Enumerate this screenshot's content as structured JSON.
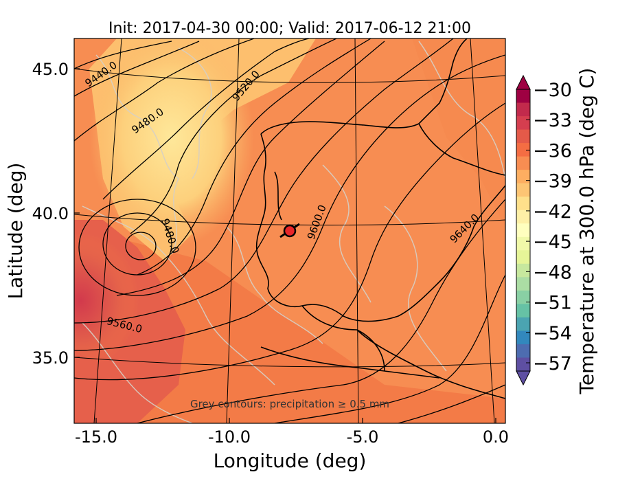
{
  "title": "Init: 2017-04-30 00:00; Valid: 2017-06-12 21:00",
  "x_axis": {
    "label": "Longitude (deg)",
    "ticks": [
      {
        "value": -15.0,
        "label": "-15.0"
      },
      {
        "value": -10.0,
        "label": "-10.0"
      },
      {
        "value": -5.0,
        "label": "-5.0"
      },
      {
        "value": 0.0,
        "label": "0.0"
      }
    ]
  },
  "y_axis": {
    "label": "Latitude (deg)",
    "ticks": [
      {
        "value": 35.0,
        "label": "35.0"
      },
      {
        "value": 40.0,
        "label": "40.0"
      },
      {
        "value": 45.0,
        "label": "45.0"
      }
    ]
  },
  "contour_labels": [
    {
      "text": "9440.0"
    },
    {
      "text": "9520.0"
    },
    {
      "text": "9480.0"
    },
    {
      "text": "9480.0"
    },
    {
      "text": "9600.0"
    },
    {
      "text": "9640.0"
    },
    {
      "text": "9560.0"
    }
  ],
  "note": "Grey contours: precipitation ≥ 0.5 mm",
  "colorbar": {
    "label": "Temperature at 300.0 hPa (deg C)",
    "ticks": [
      "−30",
      "−33",
      "−36",
      "−39",
      "−42",
      "−45",
      "−48",
      "−51",
      "−54",
      "−57"
    ],
    "colors": [
      "#9e0142",
      "#c22a4c",
      "#d53e4f",
      "#e45a49",
      "#f46d43",
      "#f88d52",
      "#fdae61",
      "#fdc574",
      "#fee08b",
      "#fef0a7",
      "#ffffbf",
      "#f1f9a9",
      "#e6f598",
      "#c7e89e",
      "#abdda4",
      "#89d0a4",
      "#66c2a5",
      "#4ba4b1",
      "#3288bd",
      "#4d6cb0",
      "#5e4fa2"
    ]
  },
  "marker": {
    "lon": -7.7,
    "lat": 39.3
  },
  "colors": {
    "field_warm": "#f47a48",
    "field_mid": "#f9a05a",
    "field_cool": "#fed582",
    "field_low": "#d94a4e",
    "coast": "#000000",
    "contour": "#000000",
    "precip": "#cfcfcf",
    "marker_fill": "#e8262a"
  }
}
